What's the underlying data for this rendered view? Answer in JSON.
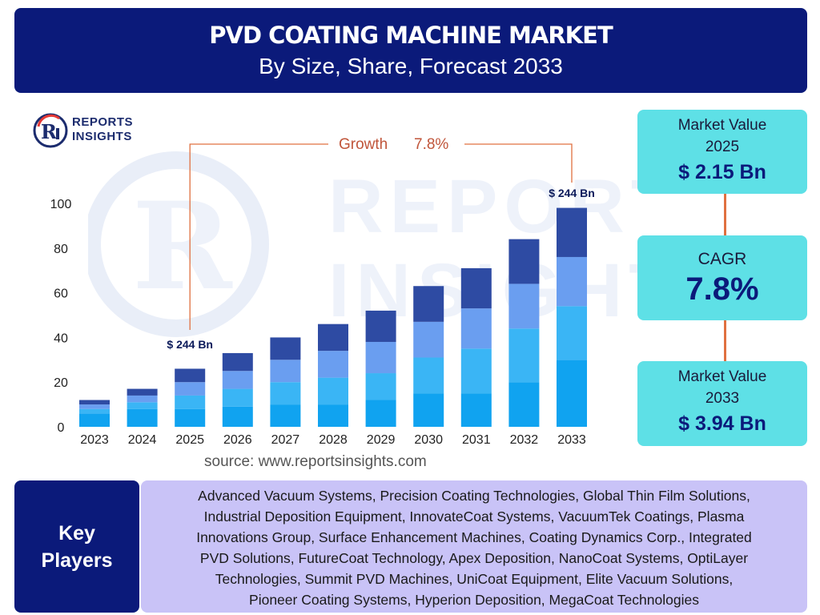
{
  "header": {
    "title": "PVD COATING MACHINE MARKET",
    "subtitle": "By Size, Share, Forecast 2033"
  },
  "logo": {
    "line1": "REPORTS",
    "line2": "INSIGHTS"
  },
  "chart_data": {
    "type": "bar",
    "stacked": true,
    "categories": [
      "2023",
      "2024",
      "2025",
      "2026",
      "2027",
      "2028",
      "2029",
      "2030",
      "2031",
      "2032",
      "2033"
    ],
    "series": [
      {
        "color": "#10a3f0",
        "values": [
          6,
          8,
          8,
          9,
          10,
          10,
          12,
          15,
          15,
          20,
          30
        ]
      },
      {
        "color": "#3ab5f5",
        "values": [
          2,
          3,
          6,
          8,
          10,
          12,
          12,
          16,
          20,
          24,
          24
        ]
      },
      {
        "color": "#6a9ef0",
        "values": [
          2,
          3,
          6,
          8,
          10,
          12,
          14,
          16,
          18,
          20,
          22
        ]
      },
      {
        "color": "#2e4ba3",
        "values": [
          2,
          3,
          6,
          8,
          10,
          12,
          14,
          16,
          18,
          20,
          22
        ]
      }
    ],
    "yticks": [
      0,
      20,
      40,
      60,
      80,
      100
    ],
    "ylim": [
      0,
      100
    ],
    "annotations": {
      "growth_label": "Growth",
      "growth_value": "7.8%",
      "start_label": "$ 244 Bn",
      "end_label": "$ 244 Bn"
    },
    "source": "source: www.reportsinsights.com"
  },
  "stats": {
    "market_value_2025_label": "Market Value 2025",
    "market_value_2025": "$ 2.15 Bn",
    "cagr_label": "CAGR",
    "cagr": "7.8%",
    "market_value_2033_label": "Market Value 2033",
    "market_value_2033": "$ 3.94 Bn"
  },
  "key_players": {
    "label_line1": "Key",
    "label_line2": "Players",
    "lines": [
      "Advanced Vacuum Systems, Precision Coating Technologies, Global Thin Film Solutions,",
      "Industrial Deposition Equipment, InnovateCoat Systems, VacuumTek Coatings, Plasma",
      "Innovations Group, Surface Enhancement Machines, Coating Dynamics Corp., Integrated",
      "PVD Solutions, FutureCoat Technology, Apex Deposition, NanoCoat Systems, OptiLayer",
      "Technologies, Summit PVD Machines, UniCoat Equipment, Elite Vacuum Solutions,",
      "Pioneer Coating Systems, Hyperion Deposition, MegaCoat Technologies"
    ]
  }
}
